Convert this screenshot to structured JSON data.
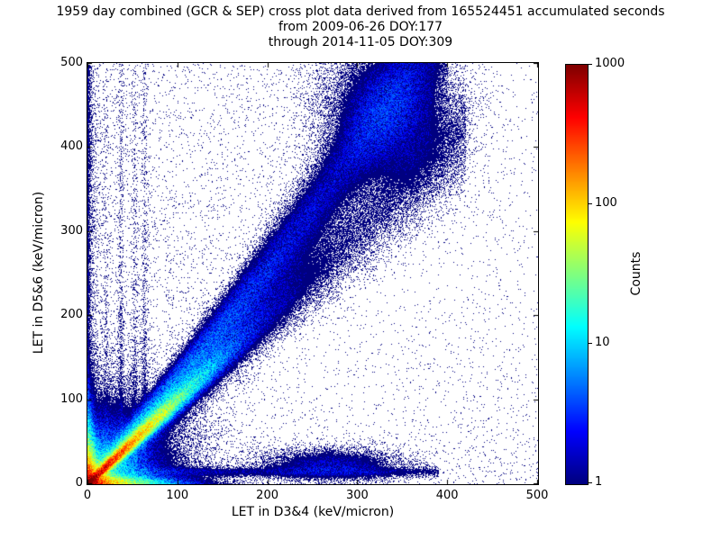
{
  "title": {
    "line1": "1959 day combined (GCR & SEP) cross plot data derived from 165524451 accumulated seconds",
    "line2": "from 2009-06-26 DOY:177",
    "line3": "through 2014-11-05 DOY:309"
  },
  "chart_data": {
    "type": "heatmap",
    "title": "1959 day combined (GCR & SEP) cross plot data derived from 165524451 accumulated seconds",
    "subtitle_line1": "from 2009-06-26 DOY:177",
    "subtitle_line2": "through 2014-11-05 DOY:309",
    "xlabel": "LET in D3&4 (keV/micron)",
    "ylabel": "LET in D5&6 (keV/micron)",
    "xlim": [
      0,
      500
    ],
    "ylim": [
      0,
      500
    ],
    "xticks": [
      0,
      100,
      200,
      300,
      400,
      500
    ],
    "yticks": [
      0,
      100,
      200,
      300,
      400,
      500
    ],
    "grid": false,
    "colorbar": {
      "label": "Counts",
      "scale": "log",
      "range": [
        1,
        1000
      ],
      "ticks": [
        1000,
        100,
        10,
        1
      ],
      "colormap": "jet"
    },
    "features": [
      {
        "kind": "background",
        "rate": 0.02
      },
      {
        "kind": "background_wedge",
        "rate": 0.02,
        "slope": 0.8,
        "xmax": 380
      },
      {
        "kind": "background_left",
        "rate": 0.07,
        "xscale": 45
      },
      {
        "kind": "background_bottom",
        "rate": 0.035,
        "yscale": 50
      },
      {
        "kind": "edge_column",
        "amp": 1.3,
        "xscale": 3.5
      },
      {
        "kind": "vstreak",
        "x": 20,
        "amp": 0.4,
        "sigma": 1.6,
        "yscale": 140
      },
      {
        "kind": "vstreak",
        "x": 37,
        "amp": 0.85,
        "sigma": 1.8,
        "yscale": 150
      },
      {
        "kind": "vstreak",
        "x": 52,
        "amp": 0.75,
        "sigma": 1.8,
        "yscale": 150
      },
      {
        "kind": "vstreak",
        "x": 63,
        "amp": 0.85,
        "sigma": 2.0,
        "yscale": 150
      },
      {
        "kind": "hot_diagonal",
        "amp": 900,
        "uscale": 28,
        "sigma0": 2.5,
        "sigma_slope": 0.05
      },
      {
        "kind": "origin_blob",
        "amp": 900,
        "scale": 9,
        "power": 1.15
      },
      {
        "kind": "x_arm",
        "amp": 300,
        "xscale": 24,
        "ysigma": 4.5
      },
      {
        "kind": "y_arm",
        "amp": 300,
        "yscale": 20,
        "xsigma": 4
      },
      {
        "kind": "halo",
        "amp": 18,
        "sigma": 30
      },
      {
        "kind": "halo",
        "amp": 3.5,
        "sigma": 60
      },
      {
        "kind": "diag_band",
        "slope": 1.15,
        "quad": 0.0006,
        "sigma0": 6,
        "sigma_slope": 0.09,
        "amp0": 16,
        "xscale": 90,
        "floor": 1.1,
        "xmax": 400
      },
      {
        "kind": "diag_band",
        "slope": 1.0,
        "quad": 0,
        "sigma0": 10,
        "sigma_slope": 0.06,
        "amp0": 5,
        "xscale": 120,
        "floor": 0.35,
        "xmax": 420
      },
      {
        "kind": "blob",
        "x": 335,
        "y": 440,
        "sx": 38,
        "sy": 48,
        "amp": 2.2
      },
      {
        "kind": "blob",
        "x": 270,
        "y": 22,
        "sx": 45,
        "sy": 11,
        "amp": 2.0
      },
      {
        "kind": "hband",
        "y": 14,
        "sigma": 3.5,
        "amp": 2.0,
        "x0": 40,
        "x1": 390,
        "xscale": 260
      }
    ]
  }
}
